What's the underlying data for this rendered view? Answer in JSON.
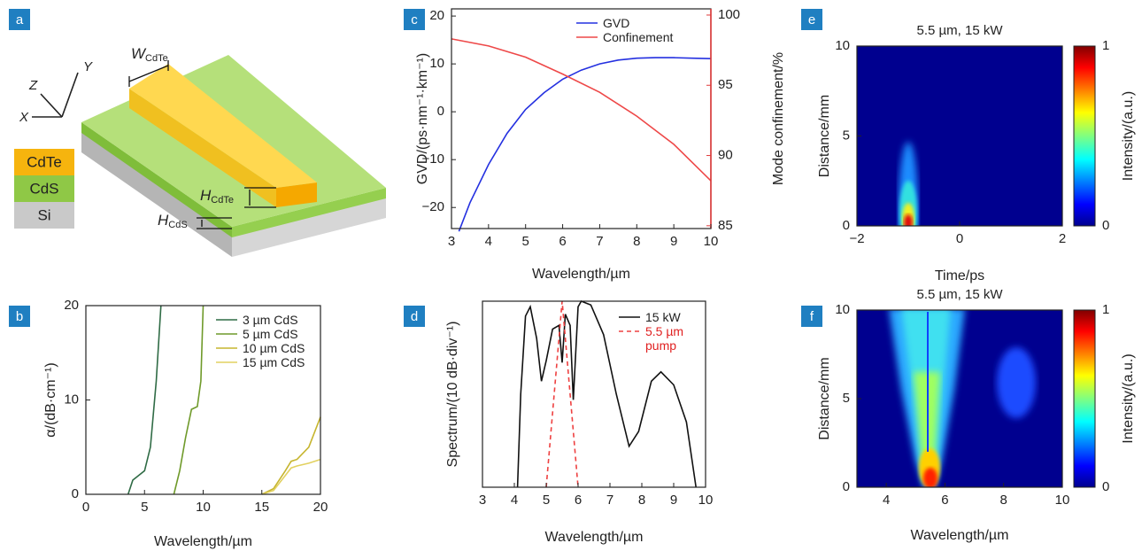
{
  "diagram": {
    "label": "a",
    "axes": {
      "z": "Z",
      "y": "Y",
      "x": "X"
    },
    "materials": [
      "CdTe",
      "CdS",
      "Si"
    ],
    "width": {
      "symbol": "W",
      "sub": "CdTe"
    },
    "heights": [
      {
        "symbol": "H",
        "sub": "CdTe"
      },
      {
        "symbol": "H",
        "sub": "CdS"
      }
    ]
  },
  "chart_data": [
    {
      "type": "line",
      "label": "b",
      "xlabel": "Wavelength/µm",
      "ylabel": "α/(dB·cm⁻¹)",
      "xlim": [
        0,
        20
      ],
      "xticks": [
        0,
        5,
        10,
        15,
        20
      ],
      "ylim": [
        0,
        20
      ],
      "yticks": [
        0,
        10,
        20
      ],
      "legend": "upper right",
      "series": [
        {
          "name": "3 µm CdS",
          "color": "#2f6b45",
          "x": [
            3.6,
            4,
            4.5,
            5,
            5.5,
            6,
            6.4
          ],
          "values": [
            0,
            1.5,
            2,
            2.5,
            5,
            12,
            20
          ]
        },
        {
          "name": "5 µm CdS",
          "color": "#6f9a2a",
          "x": [
            7.5,
            8,
            8.5,
            9,
            9.5,
            9.8,
            10
          ],
          "values": [
            0,
            2.5,
            6,
            9,
            9.3,
            12,
            20
          ]
        },
        {
          "name": "10 µm CdS",
          "color": "#c6b52e",
          "x": [
            15,
            16,
            17,
            17.5,
            18,
            19,
            20
          ],
          "values": [
            0,
            0.6,
            2.5,
            3.5,
            3.7,
            5,
            8.2
          ]
        },
        {
          "name": "15 µm CdS",
          "color": "#e2d160",
          "x": [
            15,
            16,
            17,
            17.5,
            18,
            19,
            20
          ],
          "values": [
            0,
            0.4,
            2,
            2.8,
            3,
            3.3,
            3.7
          ]
        }
      ]
    },
    {
      "type": "line",
      "label": "c",
      "xlabel": "Wavelength/µm",
      "ylabel": "GVD/(ps·nm⁻¹·km⁻¹)",
      "y2label": "Mode confinement/%",
      "xlim": [
        3,
        10
      ],
      "xticks": [
        3,
        4,
        5,
        6,
        7,
        8,
        9,
        10
      ],
      "ylim": [
        -24.4,
        21.5
      ],
      "yticks": [
        {
          "value": -20,
          "label": "−20"
        },
        {
          "value": -10,
          "label": "−10"
        },
        0,
        10,
        20
      ],
      "y2lim": [
        84.8,
        100.44
      ],
      "y2ticks": [
        85,
        90,
        95,
        100
      ],
      "y2color": "#e03a3a",
      "legend": "upper right",
      "series": [
        {
          "name": "GVD",
          "color": "#2430e0",
          "x": [
            3.2,
            3.5,
            4,
            4.5,
            5,
            5.5,
            6,
            6.5,
            7,
            7.5,
            8,
            8.5,
            9,
            9.5,
            10
          ],
          "values": [
            -25,
            -19,
            -11,
            -4.5,
            0.5,
            4,
            6.8,
            8.7,
            10,
            10.8,
            11.2,
            11.3,
            11.3,
            11.2,
            11.1
          ]
        },
        {
          "name": "Confinement",
          "color": "#ee4848",
          "axis": "y2",
          "x": [
            3,
            4,
            5,
            6,
            7,
            8,
            9,
            10
          ],
          "values": [
            98.3,
            97.8,
            97,
            95.8,
            94.5,
            92.8,
            90.8,
            88.2
          ]
        }
      ]
    },
    {
      "type": "line",
      "label": "d",
      "xlabel": "Wavelength/µm",
      "ylabel": "Spectrum/(10 dB·div⁻¹)",
      "xlim": [
        3,
        10
      ],
      "xticks": [
        3,
        4,
        5,
        6,
        7,
        8,
        9,
        10
      ],
      "ylim": [
        0,
        1
      ],
      "legend": "upper right",
      "series": [
        {
          "name": "15 kW",
          "color": "#111111",
          "x": [
            4.1,
            4.2,
            4.35,
            4.5,
            4.7,
            4.85,
            5.0,
            5.2,
            5.4,
            5.5,
            5.6,
            5.75,
            5.85,
            6.0,
            6.1,
            6.4,
            6.8,
            7.2,
            7.6,
            7.9,
            8.3,
            8.6,
            9.0,
            9.4,
            9.7
          ],
          "values": [
            0,
            0.5,
            0.92,
            0.97,
            0.8,
            0.57,
            0.68,
            0.85,
            0.87,
            0.67,
            0.93,
            0.87,
            0.47,
            0.97,
            1.0,
            0.98,
            0.82,
            0.5,
            0.22,
            0.3,
            0.57,
            0.62,
            0.55,
            0.35,
            0
          ]
        },
        {
          "name": "5.5 µm pump",
          "color": "#ee4040",
          "text_color": "#e02020",
          "dash": true,
          "x": [
            5.0,
            5.5,
            6.0
          ],
          "values": [
            0,
            1.0,
            0
          ]
        }
      ]
    },
    {
      "type": "heatmap",
      "label": "e",
      "title": "5.5 µm, 15 kW",
      "xlabel": "Time/ps",
      "ylabel": "Distance/mm",
      "xlim": [
        -2,
        2
      ],
      "xticks": [
        {
          "value": -2,
          "label": "−2"
        },
        0,
        2
      ],
      "ylim": [
        0,
        10
      ],
      "yticks": [
        0,
        5,
        10
      ],
      "colormap": "jet",
      "colorbar": {
        "ticks": [
          0,
          1
        ],
        "label": "Intensity/(a.u.)"
      }
    },
    {
      "type": "heatmap",
      "label": "f",
      "title": "5.5 µm, 15 kW",
      "xlabel": "Wavelength/µm",
      "ylabel": "Distance/mm",
      "xlim": [
        3,
        10
      ],
      "xticks": [
        4,
        6,
        8,
        10
      ],
      "ylim": [
        0,
        10
      ],
      "yticks": [
        0,
        5,
        10
      ],
      "colormap": "jet",
      "colorbar": {
        "ticks": [
          0,
          1
        ],
        "label": "Intensity/(a.u.)"
      }
    }
  ]
}
